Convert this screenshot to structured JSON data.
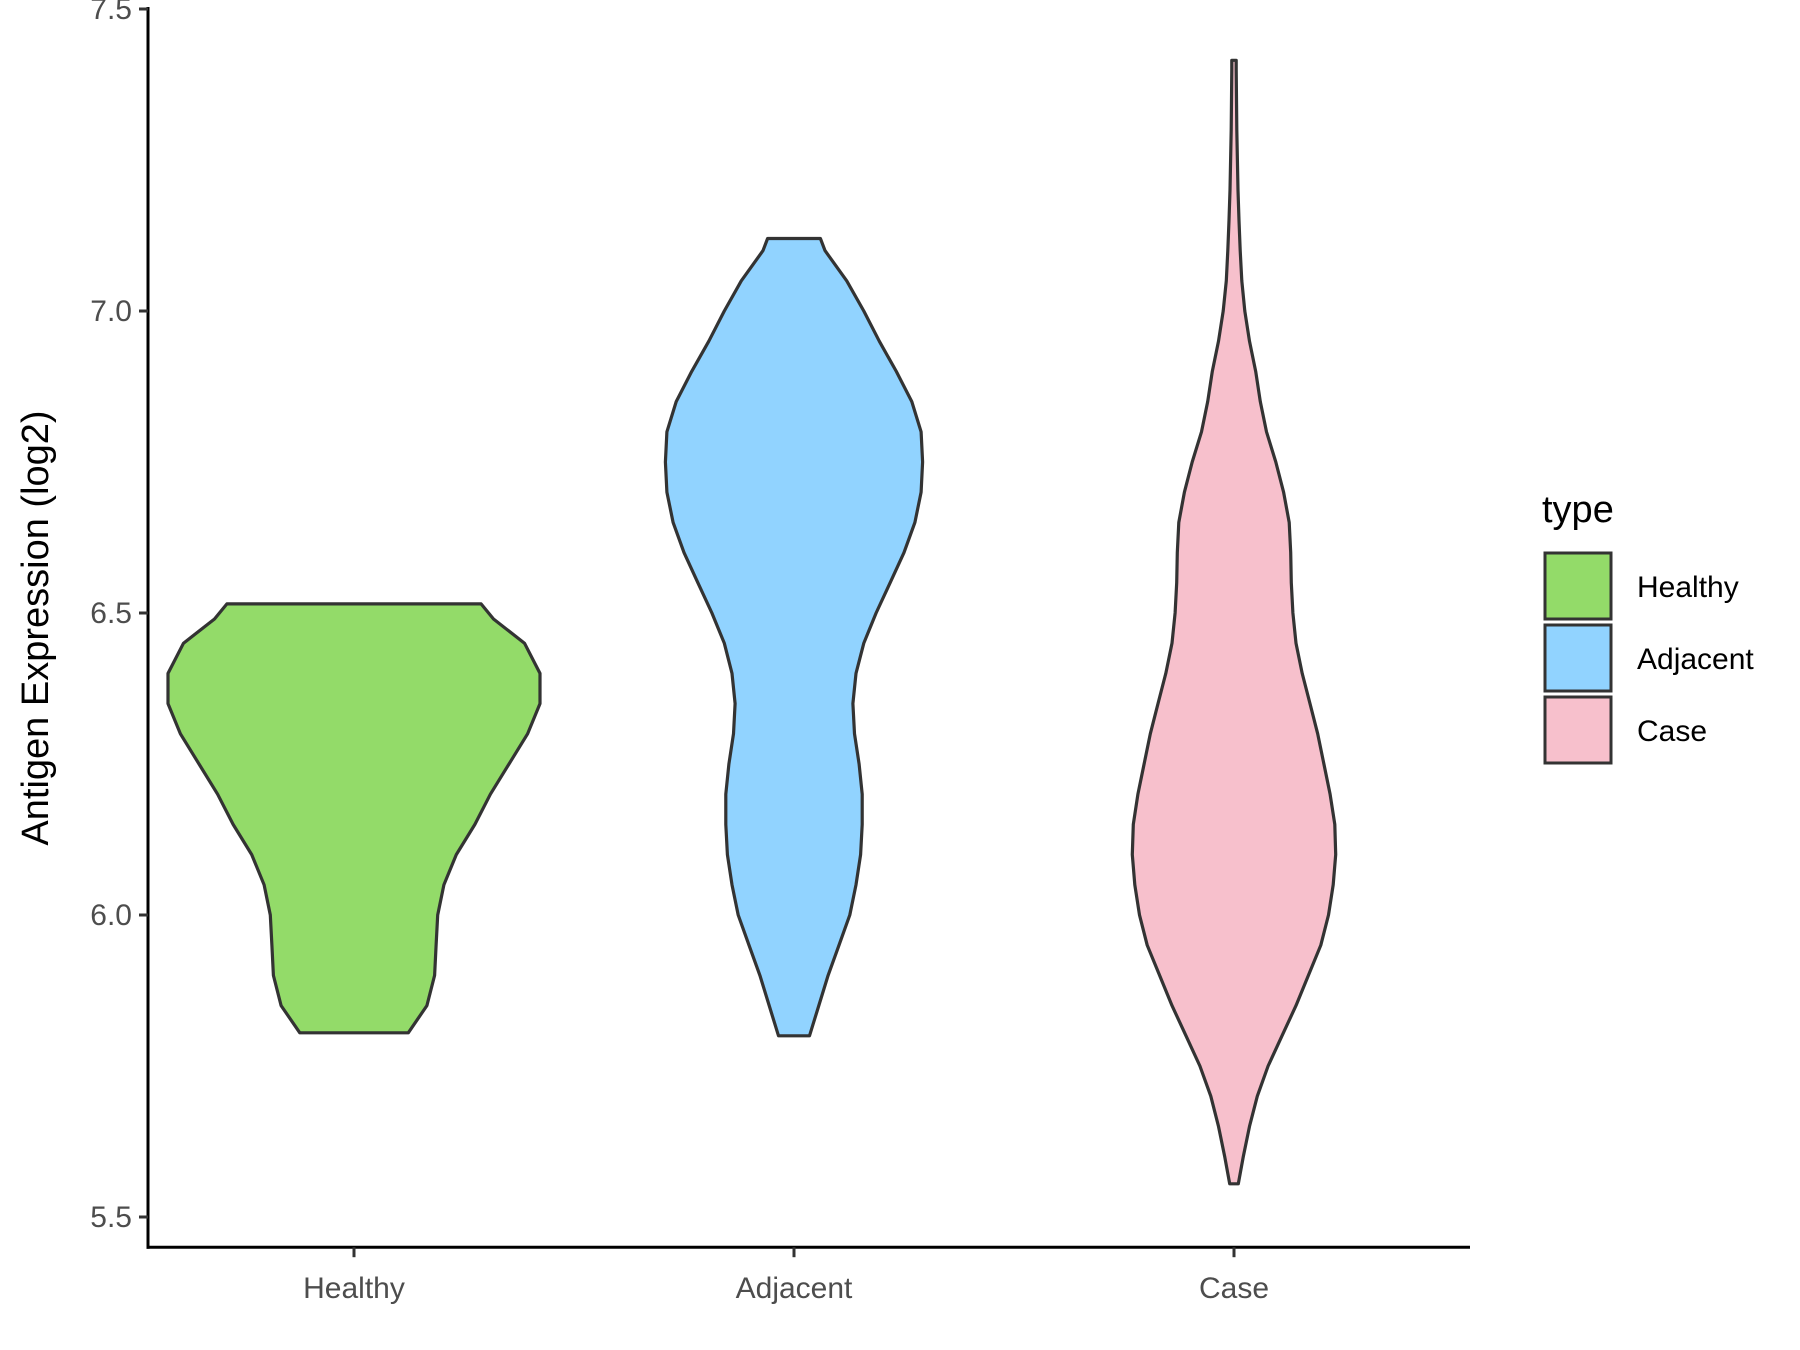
{
  "chart_data": {
    "type": "violin",
    "ylabel": "Antigen Expression (log2)",
    "xlabel": "",
    "ylim": [
      5.45,
      7.5
    ],
    "yticks": [
      5.5,
      6.0,
      6.5,
      7.0,
      7.5
    ],
    "ytick_labels": [
      "5.5",
      "6.0",
      "6.5",
      "7.0",
      "7.5"
    ],
    "categories": [
      "Healthy",
      "Adjacent",
      "Case"
    ],
    "grid": false,
    "legend": {
      "title": "type",
      "position": "right",
      "entries": [
        "Healthy",
        "Adjacent",
        "Case"
      ]
    },
    "series": [
      {
        "name": "Healthy",
        "color": "#93DB69",
        "min": 5.805,
        "max": 6.515,
        "density": [
          [
            5.805,
            0.175
          ],
          [
            5.85,
            0.235
          ],
          [
            5.9,
            0.26
          ],
          [
            5.95,
            0.265
          ],
          [
            6.0,
            0.27
          ],
          [
            6.05,
            0.29
          ],
          [
            6.1,
            0.33
          ],
          [
            6.15,
            0.39
          ],
          [
            6.2,
            0.44
          ],
          [
            6.25,
            0.5
          ],
          [
            6.3,
            0.56
          ],
          [
            6.35,
            0.6
          ],
          [
            6.4,
            0.6
          ],
          [
            6.45,
            0.55
          ],
          [
            6.49,
            0.45
          ],
          [
            6.515,
            0.41
          ]
        ]
      },
      {
        "name": "Adjacent",
        "color": "#91D3FF",
        "min": 5.8,
        "max": 7.12,
        "density": [
          [
            5.8,
            0.05
          ],
          [
            5.85,
            0.08
          ],
          [
            5.9,
            0.11
          ],
          [
            5.95,
            0.145
          ],
          [
            6.0,
            0.18
          ],
          [
            6.05,
            0.2
          ],
          [
            6.1,
            0.215
          ],
          [
            6.15,
            0.22
          ],
          [
            6.2,
            0.22
          ],
          [
            6.25,
            0.21
          ],
          [
            6.3,
            0.195
          ],
          [
            6.35,
            0.19
          ],
          [
            6.4,
            0.2
          ],
          [
            6.45,
            0.225
          ],
          [
            6.5,
            0.265
          ],
          [
            6.55,
            0.31
          ],
          [
            6.6,
            0.355
          ],
          [
            6.65,
            0.39
          ],
          [
            6.7,
            0.41
          ],
          [
            6.75,
            0.415
          ],
          [
            6.8,
            0.41
          ],
          [
            6.85,
            0.38
          ],
          [
            6.9,
            0.33
          ],
          [
            6.95,
            0.275
          ],
          [
            7.0,
            0.225
          ],
          [
            7.05,
            0.17
          ],
          [
            7.1,
            0.1
          ],
          [
            7.12,
            0.085
          ]
        ]
      },
      {
        "name": "Case",
        "color": "#F7C0CC",
        "min": 5.555,
        "max": 7.415,
        "density": [
          [
            5.555,
            0.014
          ],
          [
            5.6,
            0.03
          ],
          [
            5.65,
            0.05
          ],
          [
            5.7,
            0.075
          ],
          [
            5.75,
            0.11
          ],
          [
            5.8,
            0.155
          ],
          [
            5.85,
            0.2
          ],
          [
            5.9,
            0.24
          ],
          [
            5.95,
            0.28
          ],
          [
            6.0,
            0.305
          ],
          [
            6.05,
            0.32
          ],
          [
            6.1,
            0.328
          ],
          [
            6.15,
            0.325
          ],
          [
            6.2,
            0.31
          ],
          [
            6.25,
            0.29
          ],
          [
            6.3,
            0.27
          ],
          [
            6.35,
            0.245
          ],
          [
            6.4,
            0.22
          ],
          [
            6.45,
            0.2
          ],
          [
            6.5,
            0.19
          ],
          [
            6.55,
            0.185
          ],
          [
            6.6,
            0.183
          ],
          [
            6.65,
            0.178
          ],
          [
            6.7,
            0.16
          ],
          [
            6.75,
            0.135
          ],
          [
            6.8,
            0.105
          ],
          [
            6.85,
            0.085
          ],
          [
            6.9,
            0.07
          ],
          [
            6.95,
            0.05
          ],
          [
            7.0,
            0.035
          ],
          [
            7.05,
            0.025
          ],
          [
            7.1,
            0.02
          ],
          [
            7.15,
            0.016
          ],
          [
            7.2,
            0.013
          ],
          [
            7.25,
            0.011
          ],
          [
            7.3,
            0.009
          ],
          [
            7.35,
            0.008
          ],
          [
            7.4,
            0.007
          ],
          [
            7.415,
            0.007
          ]
        ]
      }
    ]
  }
}
